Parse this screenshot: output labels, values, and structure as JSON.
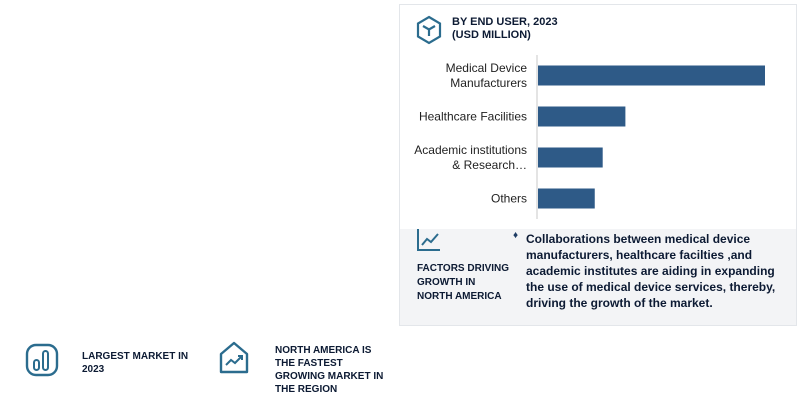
{
  "chart_title": "BY END USER, 2023\n(USD MILLION)",
  "chart_data": {
    "type": "bar",
    "orientation": "horizontal",
    "categories": [
      [
        "Medical Device",
        "Manufacturers"
      ],
      [
        "Healthcare Facilities"
      ],
      [
        "Academic institutions",
        "& Research…"
      ],
      [
        "Others"
      ]
    ],
    "values": [
      100,
      38.5,
      28.5,
      25
    ],
    "value_scale": "relative, no axis printed",
    "bar_color": "#2e5a87"
  },
  "factors": {
    "title": "FACTORS DRIVING\nGROWTH IN\nNORTH AMERICA",
    "bullet": "♦",
    "text": "Collaborations between medical device manufacturers, healthcare facilties ,and academic institutes  are aiding in expanding the use of medical device services, thereby, driving the growth of the market."
  },
  "stats": {
    "largest_market": "LARGEST MARKET IN\n2023",
    "fastest_growing": "NORTH AMERICA IS\nTHE FASTEST\nGROWING MARKET IN\nTHE REGION"
  },
  "colors": {
    "accent": "#2e5a87",
    "icon_teal": "#2b6c8e",
    "panel_bottom": "#f3f4f6",
    "heading": "#0c1a33"
  },
  "icons": [
    "cube-icon",
    "trend-chart-icon",
    "bar-gauge-icon",
    "growth-house-icon"
  ]
}
